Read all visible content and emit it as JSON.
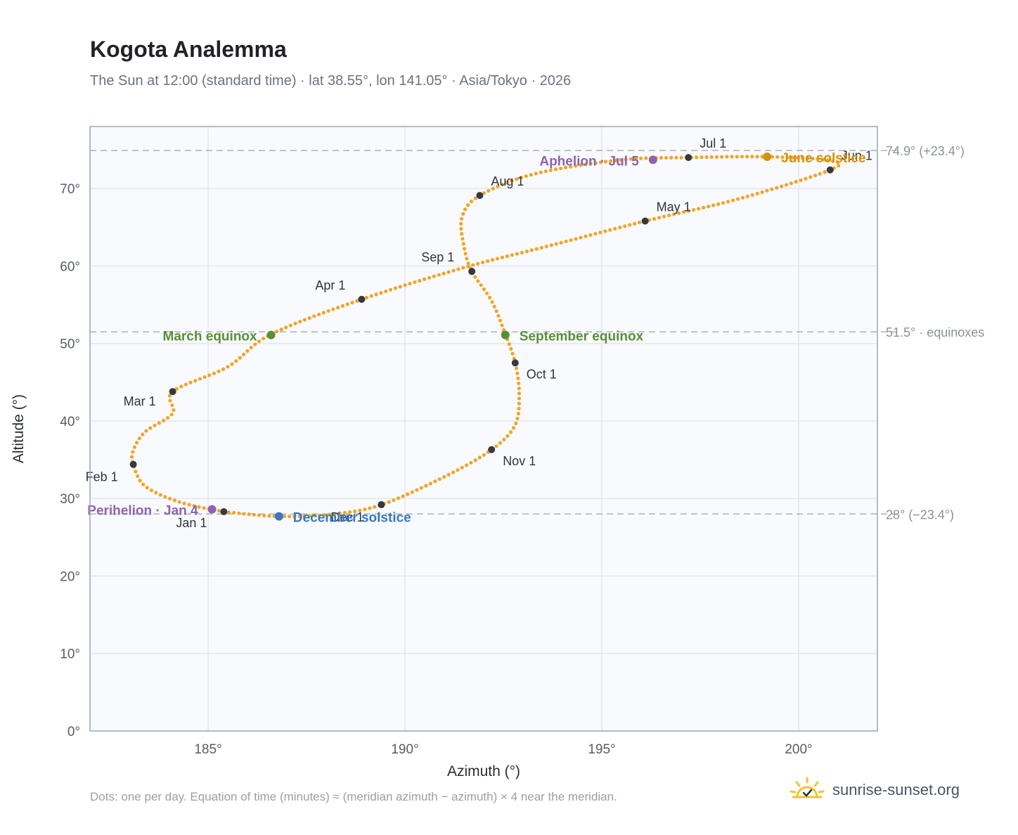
{
  "header": {
    "title": "Kogota Analemma",
    "subtitle": "The Sun at 12:00 (standard time) · lat 38.55°, lon 141.05° · Asia/Tokyo · 2026"
  },
  "footer": {
    "note": "Dots: one per day. Equation of time (minutes) ≈ (meridian azimuth − azimuth) × 4 near the meridian.",
    "brand": "sunrise-sunset.org"
  },
  "colors": {
    "curve": "#f0a52a",
    "month_marker": "#343a40",
    "equinox": "#5a8f33",
    "june_solstice": "#d4920a",
    "december_solstice": "#3a78c2",
    "apsis": "#8e63b0",
    "plot_bg": "#f8fafd",
    "grid": "#e3e7ec",
    "ref_line": "#aab2bc"
  },
  "chart_data": {
    "type": "scatter",
    "xlabel": "Azimuth (°)",
    "ylabel": "Altitude (°)",
    "xlim": [
      182,
      202
    ],
    "ylim": [
      0,
      78
    ],
    "x_ticks": [
      185,
      190,
      195,
      200
    ],
    "x_tick_labels": [
      "185°",
      "190°",
      "195°",
      "200°"
    ],
    "y_ticks": [
      0,
      10,
      20,
      30,
      40,
      50,
      60,
      70
    ],
    "y_tick_labels": [
      "0°",
      "10°",
      "20°",
      "30°",
      "40°",
      "50°",
      "60°",
      "70°"
    ],
    "grid": true,
    "reference_lines": [
      {
        "y": 74.9,
        "label": "74.9° (+23.4°)"
      },
      {
        "y": 51.5,
        "label": "51.5° · equinoxes"
      },
      {
        "y": 28.0,
        "label": "28° (−23.4°)"
      }
    ],
    "path_anchors": [
      {
        "az": 185.4,
        "alt": 28.3
      },
      {
        "az": 184.3,
        "alt": 29.5
      },
      {
        "az": 183.4,
        "alt": 31.6
      },
      {
        "az": 183.1,
        "alt": 34.4
      },
      {
        "az": 183.1,
        "alt": 36.2
      },
      {
        "az": 183.4,
        "alt": 38.6
      },
      {
        "az": 184.1,
        "alt": 41.0
      },
      {
        "az": 184.1,
        "alt": 43.8
      },
      {
        "az": 185.5,
        "alt": 47.0
      },
      {
        "az": 186.6,
        "alt": 51.2
      },
      {
        "az": 188.9,
        "alt": 55.7
      },
      {
        "az": 191.5,
        "alt": 59.8
      },
      {
        "az": 193.5,
        "alt": 62.4
      },
      {
        "az": 196.1,
        "alt": 65.8
      },
      {
        "az": 198.5,
        "alt": 68.7
      },
      {
        "az": 200.8,
        "alt": 72.4
      },
      {
        "az": 200.8,
        "alt": 73.6
      },
      {
        "az": 199.2,
        "alt": 74.1
      },
      {
        "az": 197.2,
        "alt": 74.0
      },
      {
        "az": 195.5,
        "alt": 73.7
      },
      {
        "az": 193.3,
        "alt": 71.9
      },
      {
        "az": 191.9,
        "alt": 69.1
      },
      {
        "az": 191.45,
        "alt": 66.3
      },
      {
        "az": 191.5,
        "alt": 62.5
      },
      {
        "az": 191.7,
        "alt": 59.3
      },
      {
        "az": 192.2,
        "alt": 55.5
      },
      {
        "az": 192.55,
        "alt": 51.2
      },
      {
        "az": 192.8,
        "alt": 47.5
      },
      {
        "az": 192.9,
        "alt": 43.6
      },
      {
        "az": 192.8,
        "alt": 39.5
      },
      {
        "az": 192.2,
        "alt": 36.3
      },
      {
        "az": 191.0,
        "alt": 32.8
      },
      {
        "az": 189.4,
        "alt": 29.2
      },
      {
        "az": 188.2,
        "alt": 28.0
      },
      {
        "az": 186.8,
        "alt": 27.7
      },
      {
        "az": 185.4,
        "alt": 28.3
      }
    ],
    "month_markers": [
      {
        "label": "Jan 1",
        "az": 185.4,
        "alt": 28.3,
        "dx": -68,
        "dy": 22
      },
      {
        "label": "Feb 1",
        "az": 183.1,
        "alt": 34.4,
        "dx": -68,
        "dy": 24
      },
      {
        "label": "Mar 1",
        "az": 184.1,
        "alt": 43.8,
        "dx": -70,
        "dy": 20
      },
      {
        "label": "Apr 1",
        "az": 188.9,
        "alt": 55.7,
        "dx": -66,
        "dy": -14
      },
      {
        "label": "May 1",
        "az": 196.1,
        "alt": 65.8,
        "dx": 16,
        "dy": -14
      },
      {
        "label": "Jun 1",
        "az": 200.8,
        "alt": 72.4,
        "dx": 16,
        "dy": -14
      },
      {
        "label": "Jul 1",
        "az": 197.2,
        "alt": 74.0,
        "dx": 16,
        "dy": -14
      },
      {
        "label": "Aug 1",
        "az": 191.9,
        "alt": 69.1,
        "dx": 16,
        "dy": -14
      },
      {
        "label": "Sep 1",
        "az": 191.7,
        "alt": 59.3,
        "dx": -72,
        "dy": -14
      },
      {
        "label": "Oct 1",
        "az": 192.8,
        "alt": 47.5,
        "dx": 16,
        "dy": 22
      },
      {
        "label": "Nov 1",
        "az": 192.2,
        "alt": 36.3,
        "dx": 16,
        "dy": 22
      },
      {
        "label": "Dec 1",
        "az": 189.4,
        "alt": 29.2,
        "dx": -72,
        "dy": 24
      }
    ],
    "events": [
      {
        "label": "March equinox",
        "az": 186.6,
        "alt": 51.1,
        "kind": "equinox",
        "anchor": "end",
        "dx": -20,
        "dy": 8
      },
      {
        "label": "September equinox",
        "az": 192.55,
        "alt": 51.1,
        "kind": "equinox",
        "anchor": "start",
        "dx": 20,
        "dy": 8
      },
      {
        "label": "June solstice",
        "az": 199.2,
        "alt": 74.1,
        "kind": "june",
        "anchor": "start",
        "dx": 20,
        "dy": 8
      },
      {
        "label": "December solstice",
        "az": 186.8,
        "alt": 27.7,
        "kind": "december",
        "anchor": "start",
        "dx": 20,
        "dy": 8
      },
      {
        "label": "Aphelion · Jul 5",
        "az": 196.3,
        "alt": 73.7,
        "kind": "apsis",
        "anchor": "end",
        "dx": -20,
        "dy": 8
      },
      {
        "label": "Perihelion · Jan 4",
        "az": 185.1,
        "alt": 28.6,
        "kind": "apsis",
        "anchor": "end",
        "dx": -20,
        "dy": 8
      }
    ]
  }
}
